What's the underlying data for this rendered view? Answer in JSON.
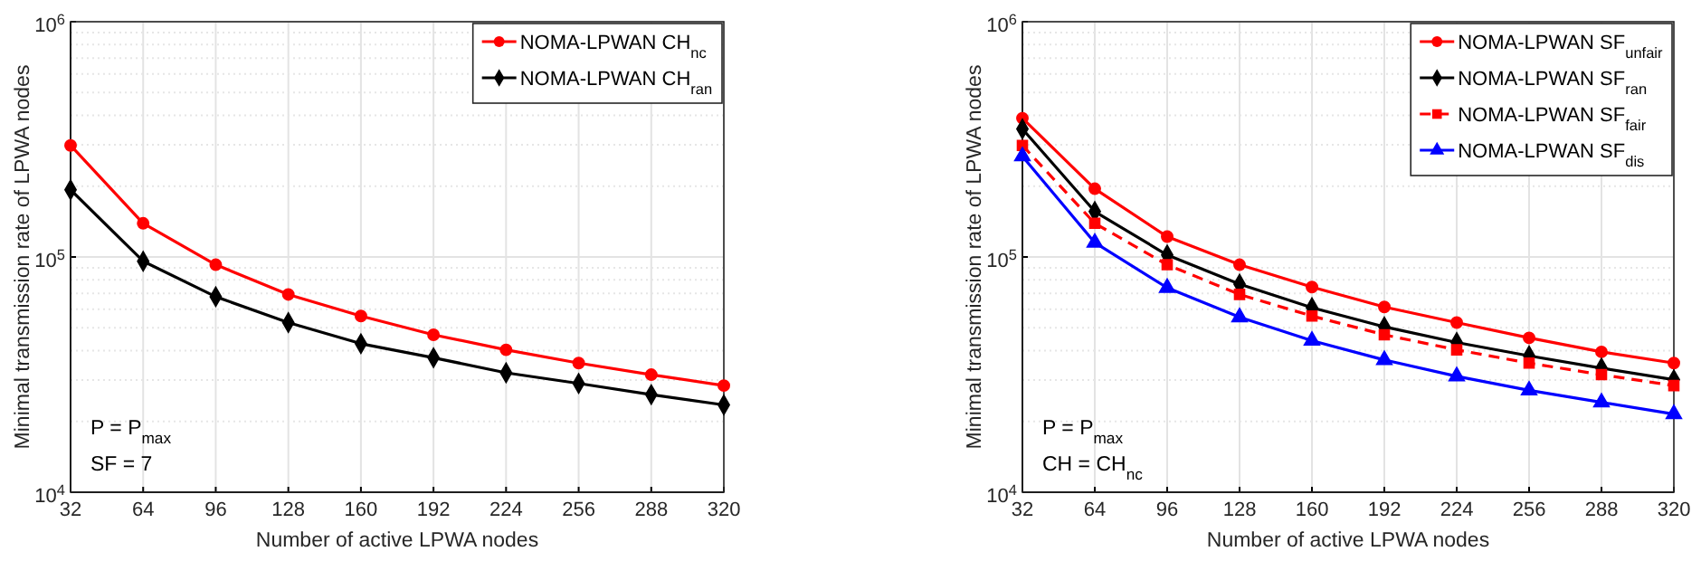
{
  "chart_data": [
    {
      "type": "line",
      "xlabel": "Number of active LPWA nodes",
      "ylabel": "Minimal transmission rate of LPWA nodes",
      "x": [
        32,
        64,
        96,
        128,
        160,
        192,
        224,
        256,
        288,
        320
      ],
      "series": [
        {
          "name": "NOMA-LPWAN CH$_{nc}$",
          "color": "#ff0000",
          "marker": "circle",
          "line_style": "solid",
          "values": [
            298000,
            139000,
            92700,
            69300,
            56100,
            46700,
            40300,
            35400,
            31600,
            28400
          ]
        },
        {
          "name": "NOMA-LPWAN CH$_{ran}$",
          "color": "#000000",
          "marker": "diamond",
          "line_style": "solid",
          "values": [
            193000,
            95900,
            67800,
            52600,
            42800,
            37300,
            32200,
            29000,
            26000,
            23500
          ]
        }
      ],
      "xlim": [
        32,
        320
      ],
      "xticks": [
        32,
        64,
        96,
        128,
        160,
        192,
        224,
        256,
        288,
        320
      ],
      "ylim": [
        10000,
        1000000
      ],
      "yticks": [
        {
          "value": 10000,
          "label": "10$^{4}$"
        },
        {
          "value": 100000,
          "label": "10$^{5}$"
        },
        {
          "value": 1000000,
          "label": "10$^{6}$"
        }
      ],
      "log": true,
      "grid": true,
      "legend": "top right",
      "annotations": [
        "P = P$_{max}$",
        "SF = 7"
      ]
    },
    {
      "type": "line",
      "xlabel": "Number of active LPWA nodes",
      "ylabel": "Minimal transmission rate of LPWA nodes",
      "x": [
        32,
        64,
        96,
        128,
        160,
        192,
        224,
        256,
        288,
        320
      ],
      "series": [
        {
          "name": "NOMA-LPWAN SF$_{unfair}$",
          "color": "#ff0000",
          "marker": "circle",
          "line_style": "solid",
          "values": [
            389000,
            195000,
            122000,
            92700,
            74500,
            61300,
            52600,
            45300,
            39500,
            35400
          ]
        },
        {
          "name": "NOMA-LPWAN SF$_{ran}$",
          "color": "#000000",
          "marker": "diamond",
          "line_style": "solid",
          "values": [
            350000,
            156000,
            102000,
            76700,
            60900,
            50500,
            43300,
            38000,
            33700,
            30100
          ]
        },
        {
          "name": "NOMA-LPWAN SF$_{fair}$",
          "color": "#ff0000",
          "marker": "square",
          "line_style": "dashed",
          "values": [
            298000,
            139000,
            92700,
            69300,
            56100,
            46700,
            40300,
            35400,
            31600,
            28400
          ]
        },
        {
          "name": "NOMA-LPWAN SF$_{dis}$",
          "color": "#0000ff",
          "marker": "triangle",
          "line_style": "solid",
          "values": [
            268000,
            115000,
            74000,
            55500,
            44100,
            36500,
            31100,
            27100,
            24100,
            21500
          ]
        }
      ],
      "xlim": [
        32,
        320
      ],
      "xticks": [
        32,
        64,
        96,
        128,
        160,
        192,
        224,
        256,
        288,
        320
      ],
      "ylim": [
        10000,
        1000000
      ],
      "yticks": [
        {
          "value": 10000,
          "label": "10$^{4}$"
        },
        {
          "value": 100000,
          "label": "10$^{5}$"
        },
        {
          "value": 1000000,
          "label": "10$^{6}$"
        }
      ],
      "log": true,
      "grid": true,
      "legend": "top right",
      "annotations": [
        "P = P$_{max}$",
        "CH = CH$_{nc}$"
      ]
    }
  ]
}
